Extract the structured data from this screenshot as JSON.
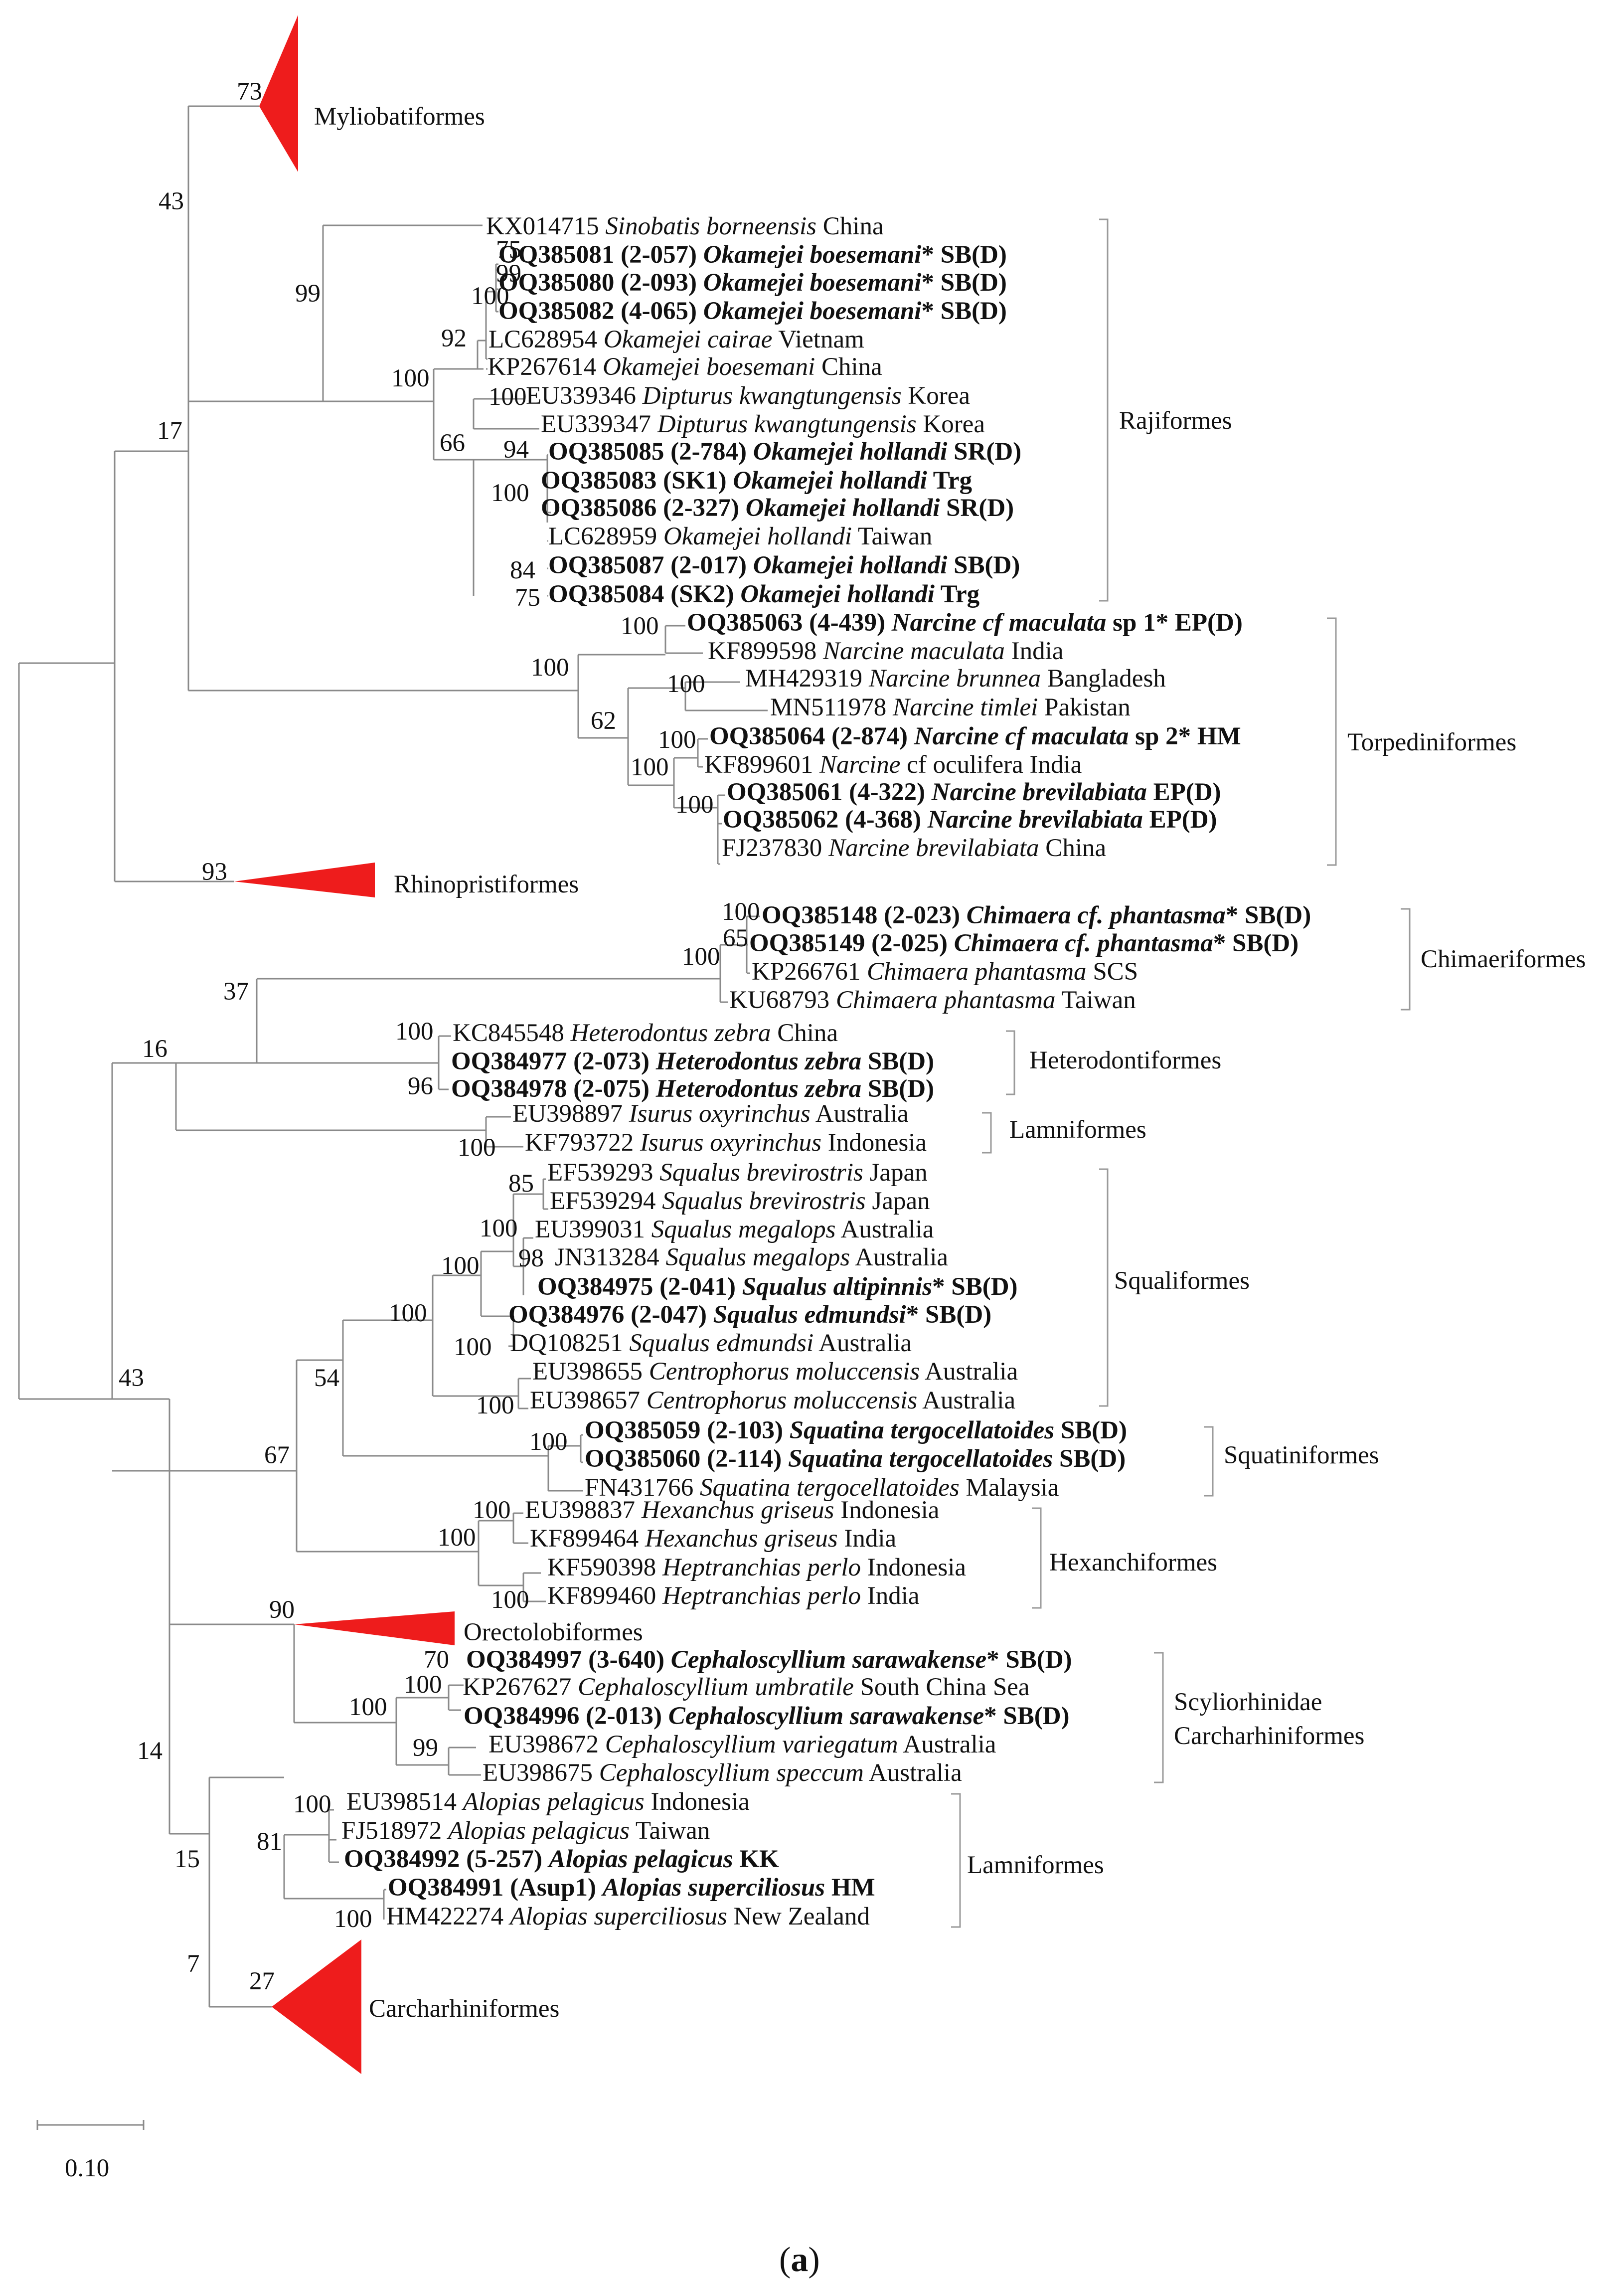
{
  "scale_bar": "0.10",
  "caption": {
    "prefix": "(",
    "letter": "a",
    "suffix": ")"
  },
  "collapsed": {
    "myliobatiformes": {
      "label": "Myliobatiformes",
      "bootstrap": "73"
    },
    "rhinopristiformes": {
      "label": "Rhinopristiformes",
      "bootstrap": "93"
    },
    "orectolobiformes": {
      "label": "Orectolobiformes",
      "bootstrap": "90"
    },
    "carcharhiniformes": {
      "label": "Carcharhiniformes",
      "bootstrap": "27"
    }
  },
  "clades": {
    "rajiformes": "Rajiformes",
    "torpediniformes": "Torpediniformes",
    "chimaeriformes": "Chimaeriformes",
    "heterodontiformes": "Heterodontiformes",
    "lamniformes_1": "Lamniformes",
    "squaliformes": "Squaliformes",
    "squatiniformes": "Squatiniformes",
    "hexanchiformes": "Hexanchiformes",
    "scyliorhinidae": "Scyliorhinidae",
    "carcharhiniformes_2": "Carcharhiniformes",
    "lamniformes_2": "Lamniformes"
  },
  "bootstrap": {
    "b43_top": "43",
    "b99_raj": "99",
    "b17": "17",
    "b75_a": "75",
    "b99_a": "99",
    "b100_a": "100",
    "b92": "92",
    "b100_b": "100",
    "b100_c": "100",
    "b66": "66",
    "b94": "94",
    "b100_d": "100",
    "b84": "84",
    "b75_b": "75",
    "b100_e": "100",
    "b100_f": "100",
    "b100_g": "100",
    "b62": "62",
    "b100_h": "100",
    "b100_i": "100",
    "b100_j": "100",
    "b100_k": "100",
    "b65": "65",
    "b100_l": "100",
    "b37": "37",
    "b16": "16",
    "b100_m": "100",
    "b96": "96",
    "b100_n": "100",
    "b85": "85",
    "b100_o": "100",
    "b98": "98",
    "b100_p": "100",
    "b100_q": "100",
    "b100_r": "100",
    "b100_s": "100",
    "b54": "54",
    "b43_mid": "43",
    "b100_t": "100",
    "b67": "67",
    "b100_u": "100",
    "b100_v": "100",
    "b100_w": "100",
    "b70": "70",
    "b100_x": "100",
    "b100_y": "100",
    "b99_b": "99",
    "b14": "14",
    "b100_z": "100",
    "b81": "81",
    "b15": "15",
    "b100_aa": "100",
    "b7": "7"
  },
  "tips": [
    {
      "acc": "KX014715",
      "code": "",
      "species": "Sinobatis borneensis",
      "star": "",
      "loc": "China",
      "bold": false
    },
    {
      "acc": "OQ385081",
      "code": "(2-057)",
      "species": "Okamejei boesemani",
      "star": "*",
      "loc": "SB(D)",
      "bold": true
    },
    {
      "acc": "OQ385080",
      "code": "(2-093)",
      "species": "Okamejei boesemani",
      "star": "*",
      "loc": "SB(D)",
      "bold": true
    },
    {
      "acc": "OQ385082",
      "code": "(4-065)",
      "species": "Okamejei boesemani",
      "star": "*",
      "loc": "SB(D)",
      "bold": true
    },
    {
      "acc": "LC628954",
      "code": "",
      "species": "Okamejei cairae",
      "star": "",
      "loc": "Vietnam",
      "bold": false
    },
    {
      "acc": "KP267614",
      "code": "",
      "species": "Okamejei boesemani",
      "star": "",
      "loc": "China",
      "bold": false
    },
    {
      "acc": "EU339346",
      "code": "",
      "species": "Dipturus kwangtungensis",
      "star": "",
      "loc": "Korea",
      "bold": false
    },
    {
      "acc": "EU339347",
      "code": "",
      "species": "Dipturus kwangtungensis",
      "star": "",
      "loc": "Korea",
      "bold": false
    },
    {
      "acc": "OQ385085",
      "code": "(2-784)",
      "species": "Okamejei hollandi",
      "star": "",
      "loc": "SR(D)",
      "bold": true
    },
    {
      "acc": "OQ385083",
      "code": "(SK1)",
      "species": "Okamejei hollandi",
      "star": "",
      "loc": "Trg",
      "bold": true
    },
    {
      "acc": "OQ385086",
      "code": "(2-327)",
      "species": "Okamejei hollandi",
      "star": "",
      "loc": "SR(D)",
      "bold": true
    },
    {
      "acc": "LC628959",
      "code": "",
      "species": "Okamejei hollandi",
      "star": "",
      "loc": "Taiwan",
      "bold": false
    },
    {
      "acc": "OQ385087",
      "code": "(2-017)",
      "species": "Okamejei hollandi",
      "star": "",
      "loc": "SB(D)",
      "bold": true
    },
    {
      "acc": "OQ385084",
      "code": "(SK2)",
      "species": "Okamejei hollandi",
      "star": "",
      "loc": "Trg",
      "bold": true
    },
    {
      "acc": "OQ385063",
      "code": "(4-439)",
      "species": "Narcine cf maculata",
      "star": "",
      "loc": "sp 1* EP(D)",
      "bold": true
    },
    {
      "acc": "KF899598",
      "code": "",
      "species": "Narcine maculata",
      "star": "",
      "loc": "India",
      "bold": false
    },
    {
      "acc": "MH429319",
      "code": "",
      "species": "Narcine brunnea",
      "star": "",
      "loc": "Bangladesh",
      "bold": false
    },
    {
      "acc": "MN511978",
      "code": "",
      "species": "Narcine timlei",
      "star": "",
      "loc": "Pakistan",
      "bold": false
    },
    {
      "acc": "OQ385064",
      "code": "(2-874)",
      "species": "Narcine cf maculata",
      "star": "",
      "loc": "sp 2* HM",
      "bold": true
    },
    {
      "acc": "KF899601",
      "code": "",
      "species": "Narcine",
      "star": "",
      "loc": "cf oculifera India",
      "bold": false
    },
    {
      "acc": "OQ385061",
      "code": "(4-322)",
      "species": "Narcine brevilabiata",
      "star": "",
      "loc": "EP(D)",
      "bold": true
    },
    {
      "acc": "OQ385062",
      "code": "(4-368)",
      "species": "Narcine brevilabiata",
      "star": "",
      "loc": "EP(D)",
      "bold": true
    },
    {
      "acc": "FJ237830",
      "code": "",
      "species": "Narcine brevilabiata",
      "star": "",
      "loc": "China",
      "bold": false
    },
    {
      "acc": "OQ385148",
      "code": "(2-023)",
      "species": "Chimaera cf. phantasma",
      "star": "*",
      "loc": "SB(D)",
      "bold": true
    },
    {
      "acc": "OQ385149",
      "code": "(2-025)",
      "species": "Chimaera cf. phantasma",
      "star": "*",
      "loc": "SB(D)",
      "bold": true
    },
    {
      "acc": "KP266761",
      "code": "",
      "species": "Chimaera phantasma",
      "star": "",
      "loc": "SCS",
      "bold": false
    },
    {
      "acc": "KU68793",
      "code": "",
      "species": "Chimaera phantasma",
      "star": "",
      "loc": "Taiwan",
      "bold": false
    },
    {
      "acc": "KC845548",
      "code": "",
      "species": "Heterodontus zebra",
      "star": "",
      "loc": "China",
      "bold": false
    },
    {
      "acc": "OQ384977",
      "code": "(2-073)",
      "species": "Heterodontus zebra",
      "star": "",
      "loc": "SB(D)",
      "bold": true
    },
    {
      "acc": "OQ384978",
      "code": "(2-075)",
      "species": "Heterodontus zebra",
      "star": "",
      "loc": " SB(D)",
      "bold": true
    },
    {
      "acc": "EU398897",
      "code": "",
      "species": "Isurus oxyrinchus",
      "star": "",
      "loc": "Australia",
      "bold": false
    },
    {
      "acc": "KF793722",
      "code": "",
      "species": "Isurus oxyrinchus",
      "star": "",
      "loc": "Indonesia",
      "bold": false
    },
    {
      "acc": "EF539293",
      "code": "",
      "species": "Squalus brevirostris",
      "star": "",
      "loc": "Japan",
      "bold": false
    },
    {
      "acc": "EF539294",
      "code": "",
      "species": "Squalus brevirostris",
      "star": "",
      "loc": "Japan",
      "bold": false
    },
    {
      "acc": "EU399031",
      "code": "",
      "species": "Squalus megalops",
      "star": "",
      "loc": "Australia",
      "bold": false
    },
    {
      "acc": "JN313284",
      "code": "",
      "species": "Squalus megalops",
      "star": "",
      "loc": "Australia",
      "bold": false
    },
    {
      "acc": "OQ384975",
      "code": "(2-041)",
      "species": "Squalus altipinnis",
      "star": "*",
      "loc": "SB(D)",
      "bold": true
    },
    {
      "acc": "OQ384976",
      "code": "(2-047)",
      "species": "Squalus edmundsi",
      "star": "*",
      "loc": "SB(D)",
      "bold": true
    },
    {
      "acc": "DQ108251",
      "code": "",
      "species": "Squalus edmundsi",
      "star": "",
      "loc": "Australia",
      "bold": false
    },
    {
      "acc": "EU398655",
      "code": "",
      "species": "Centrophorus moluccensis",
      "star": "",
      "loc": "Australia",
      "bold": false
    },
    {
      "acc": "EU398657",
      "code": "",
      "species": "Centrophorus moluccensis",
      "star": "",
      "loc": "Australia",
      "bold": false
    },
    {
      "acc": "OQ385059",
      "code": "(2-103)",
      "species": "Squatina tergocellatoides",
      "star": "",
      "loc": "SB(D)",
      "bold": true
    },
    {
      "acc": "OQ385060",
      "code": "(2-114)",
      "species": "Squatina tergocellatoides",
      "star": "",
      "loc": "SB(D)",
      "bold": true
    },
    {
      "acc": "FN431766",
      "code": "",
      "species": "Squatina tergocellatoides",
      "star": "",
      "loc": "Malaysia",
      "bold": false
    },
    {
      "acc": "EU398837",
      "code": "",
      "species": "Hexanchus griseus",
      "star": "",
      "loc": "Indonesia",
      "bold": false
    },
    {
      "acc": "KF899464",
      "code": "",
      "species": "Hexanchus griseus",
      "star": "",
      "loc": "India",
      "bold": false
    },
    {
      "acc": "KF590398",
      "code": "",
      "species": "Heptranchias perlo",
      "star": "",
      "loc": "Indonesia",
      "bold": false
    },
    {
      "acc": "KF899460",
      "code": "",
      "species": "Heptranchias perlo",
      "star": "",
      "loc": "India",
      "bold": false
    },
    {
      "acc": "OQ384997",
      "code": "(3-640)",
      "species": "Cephaloscyllium sarawakense",
      "star": "*",
      "loc": "SB(D)",
      "bold": true
    },
    {
      "acc": "KP267627",
      "code": "",
      "species": "Cephaloscyllium umbratile",
      "star": "",
      "loc": "South China Sea",
      "bold": false
    },
    {
      "acc": "OQ384996",
      "code": "(2-013)",
      "species": "Cephaloscyllium sarawakense",
      "star": "*",
      "loc": "SB(D)",
      "bold": true
    },
    {
      "acc": "EU398672",
      "code": "",
      "species": "Cephaloscyllium variegatum",
      "star": "",
      "loc": "Australia",
      "bold": false
    },
    {
      "acc": "EU398675",
      "code": "",
      "species": "Cephaloscyllium speccum",
      "star": "",
      "loc": "Australia",
      "bold": false
    },
    {
      "acc": "EU398514",
      "code": "",
      "species": "Alopias pelagicus",
      "star": "",
      "loc": "Indonesia",
      "bold": false
    },
    {
      "acc": "FJ518972",
      "code": "",
      "species": "Alopias pelagicus",
      "star": "",
      "loc": "Taiwan",
      "bold": false
    },
    {
      "acc": "OQ384992",
      "code": "(5-257)",
      "species": "Alopias pelagicus",
      "star": "",
      "loc": "KK",
      "bold": true
    },
    {
      "acc": "OQ384991",
      "code": "(Asup1)",
      "species": "Alopias superciliosus",
      "star": "",
      "loc": "HM",
      "bold": true
    },
    {
      "acc": "HM422274",
      "code": "",
      "species": "Alopias superciliosus",
      "star": "",
      "loc": "New Zealand",
      "bold": false
    }
  ]
}
